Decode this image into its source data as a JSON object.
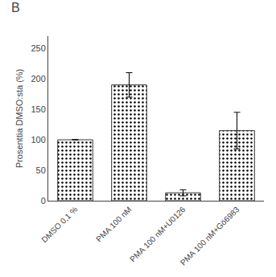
{
  "chart_data": {
    "type": "bar",
    "categories": [
      "DMSO 0,1 %",
      "PMA 100 nM",
      "PMA 100 nM+U0126",
      "PMA 100 nM+Gö6983"
    ],
    "values": [
      100,
      190,
      13,
      115
    ],
    "errors": [
      0,
      20,
      5,
      30
    ],
    "ylabel": "Prosenttia DMSO:sta (%)",
    "annotations": [
      "B"
    ],
    "color": "#aaaaaa",
    "ylim": [
      0,
      270
    ],
    "yticks": [
      0,
      50,
      100,
      150,
      200,
      250
    ],
    "grid": false
  }
}
